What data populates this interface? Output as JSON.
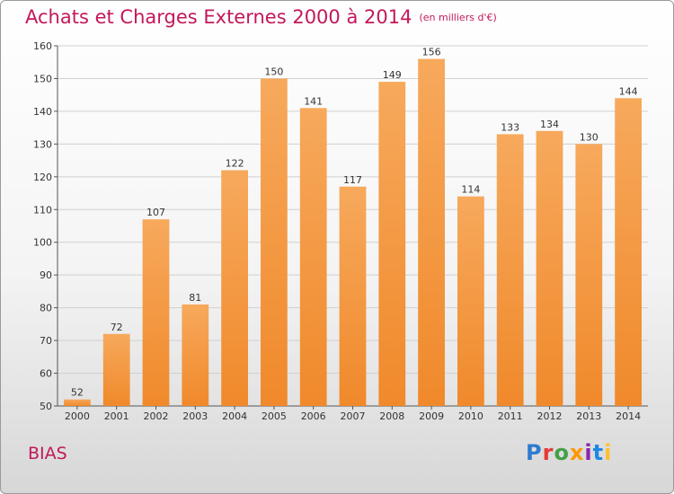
{
  "title": "Achats et Charges Externes 2000 à 2014",
  "unit": "(en milliers d'€)",
  "commune": "BIAS",
  "logo": {
    "text": "Proxiti",
    "colors": [
      "#2e7bcf",
      "#e53935",
      "#43a047",
      "#ff9800",
      "#8e24aa",
      "#1e88e5",
      "#fbc02d"
    ]
  },
  "colors": {
    "bar": "#f0892b",
    "bar_light": "#f7a95c",
    "title": "#c2185b"
  },
  "chart_data": {
    "type": "bar",
    "categories": [
      "2000",
      "2001",
      "2002",
      "2003",
      "2004",
      "2005",
      "2006",
      "2007",
      "2008",
      "2009",
      "2010",
      "2011",
      "2012",
      "2013",
      "2014"
    ],
    "values": [
      52,
      72,
      107,
      81,
      122,
      150,
      141,
      117,
      149,
      156,
      114,
      133,
      134,
      130,
      144
    ],
    "title": "Achats et Charges Externes 2000 à 2014",
    "ylim": [
      50,
      160
    ],
    "yticks": [
      50,
      60,
      70,
      80,
      90,
      100,
      110,
      120,
      130,
      140,
      150,
      160
    ],
    "grid": true
  }
}
